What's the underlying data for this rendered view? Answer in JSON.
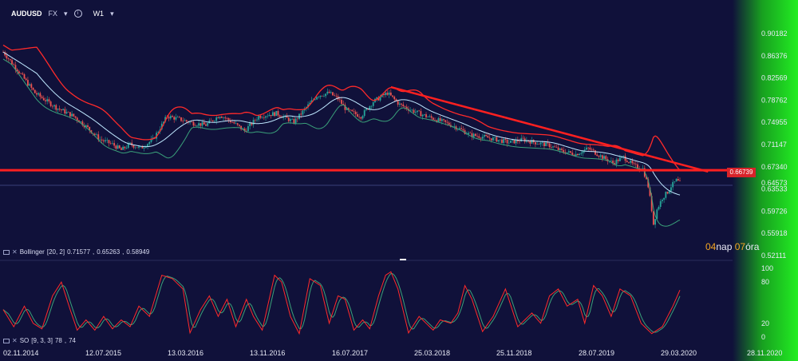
{
  "header": {
    "symbol": "AUDUSD",
    "exchange": "FX",
    "interval": "W1"
  },
  "indicators": {
    "bollinger": {
      "name": "Bollinger",
      "params": "[20, 2]",
      "upper": "0.71577",
      "middle": "0.65263",
      "lower": "0.58949"
    },
    "stochastic": {
      "name": "SO",
      "params": "[9, 3, 3]",
      "k": "78",
      "d": "74"
    }
  },
  "price_level": "0.66739",
  "countdown": {
    "days": "04",
    "days_label": "nap",
    "hours": "07",
    "hours_label": "óra"
  },
  "colors": {
    "background": "#10113a",
    "up_candle": "#26a69a",
    "down_candle": "#ef5350",
    "bb_upper": "#ff2a2a",
    "bb_middle": "#bfe8ff",
    "bb_lower": "#3aa17a",
    "trendline": "#ff2020",
    "stoch_k": "#ff2a2a",
    "stoch_d": "#3aa17a",
    "price_scale": "#22ee22"
  },
  "chart_data": [
    {
      "type": "candlestick",
      "symbol": "AUDUSD",
      "interval": "W1",
      "x_tick_labels": [
        "02.11.2014",
        "12.07.2015",
        "13.03.2016",
        "13.11.2016",
        "16.07.2017",
        "25.03.2018",
        "25.11.2018",
        "28.07.2019",
        "29.03.2020",
        "28.11.2020"
      ],
      "y_tick_labels": [
        "0.90182",
        "0.86376",
        "0.82569",
        "0.78762",
        "0.74955",
        "0.71147",
        "0.67340",
        "0.64573",
        "0.63533",
        "0.59726",
        "0.55918",
        "0.52111"
      ],
      "ylim": [
        0.5211,
        0.9018
      ],
      "close_path": [
        {
          "w": 0,
          "p": 0.87
        },
        {
          "w": 8,
          "p": 0.84
        },
        {
          "w": 18,
          "p": 0.8
        },
        {
          "w": 30,
          "p": 0.775
        },
        {
          "w": 40,
          "p": 0.76
        },
        {
          "w": 48,
          "p": 0.74
        },
        {
          "w": 55,
          "p": 0.72
        },
        {
          "w": 62,
          "p": 0.712
        },
        {
          "w": 67,
          "p": 0.702
        },
        {
          "w": 72,
          "p": 0.712
        },
        {
          "w": 78,
          "p": 0.705
        },
        {
          "w": 85,
          "p": 0.72
        },
        {
          "w": 93,
          "p": 0.76
        },
        {
          "w": 100,
          "p": 0.755
        },
        {
          "w": 108,
          "p": 0.748
        },
        {
          "w": 115,
          "p": 0.745
        },
        {
          "w": 123,
          "p": 0.762
        },
        {
          "w": 130,
          "p": 0.75
        },
        {
          "w": 137,
          "p": 0.735
        },
        {
          "w": 145,
          "p": 0.76
        },
        {
          "w": 155,
          "p": 0.765
        },
        {
          "w": 165,
          "p": 0.75
        },
        {
          "w": 172,
          "p": 0.775
        },
        {
          "w": 178,
          "p": 0.795
        },
        {
          "w": 185,
          "p": 0.8
        },
        {
          "w": 190,
          "p": 0.79
        },
        {
          "w": 195,
          "p": 0.77
        },
        {
          "w": 203,
          "p": 0.76
        },
        {
          "w": 210,
          "p": 0.785
        },
        {
          "w": 218,
          "p": 0.8
        },
        {
          "w": 225,
          "p": 0.78
        },
        {
          "w": 232,
          "p": 0.77
        },
        {
          "w": 240,
          "p": 0.76
        },
        {
          "w": 250,
          "p": 0.75
        },
        {
          "w": 258,
          "p": 0.74
        },
        {
          "w": 265,
          "p": 0.728
        },
        {
          "w": 272,
          "p": 0.725
        },
        {
          "w": 280,
          "p": 0.72
        },
        {
          "w": 287,
          "p": 0.715
        },
        {
          "w": 295,
          "p": 0.72
        },
        {
          "w": 302,
          "p": 0.715
        },
        {
          "w": 310,
          "p": 0.71
        },
        {
          "w": 317,
          "p": 0.7
        },
        {
          "w": 325,
          "p": 0.695
        },
        {
          "w": 332,
          "p": 0.705
        },
        {
          "w": 340,
          "p": 0.69
        },
        {
          "w": 346,
          "p": 0.68
        },
        {
          "w": 352,
          "p": 0.69
        },
        {
          "w": 358,
          "p": 0.675
        },
        {
          "w": 363,
          "p": 0.67
        },
        {
          "w": 366,
          "p": 0.64
        },
        {
          "w": 368,
          "p": 0.6
        },
        {
          "w": 369,
          "p": 0.575
        },
        {
          "w": 371,
          "p": 0.6
        },
        {
          "w": 374,
          "p": 0.62
        },
        {
          "w": 377,
          "p": 0.63
        },
        {
          "w": 379,
          "p": 0.64
        },
        {
          "w": 382,
          "p": 0.65
        },
        {
          "w": 384,
          "p": 0.645
        }
      ],
      "bollinger_bands": {
        "period": 20,
        "deviation": 2,
        "upper": 0.71577,
        "middle": 0.65263,
        "lower": 0.58949
      },
      "annotations": [
        {
          "type": "horizontal-line",
          "price": 0.66739
        },
        {
          "type": "trendline",
          "from": {
            "w": 220,
            "p": 0.81
          },
          "to": {
            "w": 400,
            "p": 0.665
          }
        }
      ]
    },
    {
      "type": "line",
      "name": "SO [9, 3, 3]",
      "y_tick_labels": [
        "100",
        "80",
        "20",
        "0"
      ],
      "ylim": [
        0,
        100
      ],
      "latest": {
        "k": 78,
        "d": 74
      },
      "k_path": [
        {
          "w": 0,
          "v": 40
        },
        {
          "w": 6,
          "v": 15
        },
        {
          "w": 12,
          "v": 45
        },
        {
          "w": 17,
          "v": 20
        },
        {
          "w": 22,
          "v": 12
        },
        {
          "w": 28,
          "v": 60
        },
        {
          "w": 33,
          "v": 80
        },
        {
          "w": 38,
          "v": 40
        },
        {
          "w": 42,
          "v": 10
        },
        {
          "w": 47,
          "v": 25
        },
        {
          "w": 52,
          "v": 10
        },
        {
          "w": 57,
          "v": 30
        },
        {
          "w": 62,
          "v": 12
        },
        {
          "w": 67,
          "v": 25
        },
        {
          "w": 72,
          "v": 15
        },
        {
          "w": 77,
          "v": 45
        },
        {
          "w": 83,
          "v": 30
        },
        {
          "w": 90,
          "v": 90
        },
        {
          "w": 96,
          "v": 85
        },
        {
          "w": 102,
          "v": 70
        },
        {
          "w": 106,
          "v": 6
        },
        {
          "w": 112,
          "v": 40
        },
        {
          "w": 117,
          "v": 60
        },
        {
          "w": 122,
          "v": 30
        },
        {
          "w": 127,
          "v": 55
        },
        {
          "w": 132,
          "v": 15
        },
        {
          "w": 138,
          "v": 55
        },
        {
          "w": 142,
          "v": 30
        },
        {
          "w": 147,
          "v": 10
        },
        {
          "w": 154,
          "v": 90
        },
        {
          "w": 158,
          "v": 80
        },
        {
          "w": 163,
          "v": 30
        },
        {
          "w": 168,
          "v": 5
        },
        {
          "w": 174,
          "v": 85
        },
        {
          "w": 180,
          "v": 75
        },
        {
          "w": 185,
          "v": 20
        },
        {
          "w": 190,
          "v": 60
        },
        {
          "w": 194,
          "v": 55
        },
        {
          "w": 199,
          "v": 10
        },
        {
          "w": 204,
          "v": 25
        },
        {
          "w": 208,
          "v": 12
        },
        {
          "w": 213,
          "v": 60
        },
        {
          "w": 217,
          "v": 90
        },
        {
          "w": 220,
          "v": 95
        },
        {
          "w": 224,
          "v": 70
        },
        {
          "w": 230,
          "v": 6
        },
        {
          "w": 236,
          "v": 30
        },
        {
          "w": 240,
          "v": 20
        },
        {
          "w": 244,
          "v": 10
        },
        {
          "w": 248,
          "v": 25
        },
        {
          "w": 254,
          "v": 20
        },
        {
          "w": 258,
          "v": 35
        },
        {
          "w": 262,
          "v": 75
        },
        {
          "w": 266,
          "v": 55
        },
        {
          "w": 272,
          "v": 8
        },
        {
          "w": 278,
          "v": 30
        },
        {
          "w": 285,
          "v": 70
        },
        {
          "w": 292,
          "v": 15
        },
        {
          "w": 300,
          "v": 35
        },
        {
          "w": 305,
          "v": 20
        },
        {
          "w": 310,
          "v": 60
        },
        {
          "w": 315,
          "v": 70
        },
        {
          "w": 320,
          "v": 45
        },
        {
          "w": 326,
          "v": 55
        },
        {
          "w": 330,
          "v": 20
        },
        {
          "w": 335,
          "v": 75
        },
        {
          "w": 340,
          "v": 60
        },
        {
          "w": 345,
          "v": 30
        },
        {
          "w": 350,
          "v": 70
        },
        {
          "w": 356,
          "v": 60
        },
        {
          "w": 362,
          "v": 20
        },
        {
          "w": 368,
          "v": 5
        },
        {
          "w": 374,
          "v": 15
        },
        {
          "w": 380,
          "v": 45
        },
        {
          "w": 386,
          "v": 80
        }
      ]
    }
  ]
}
